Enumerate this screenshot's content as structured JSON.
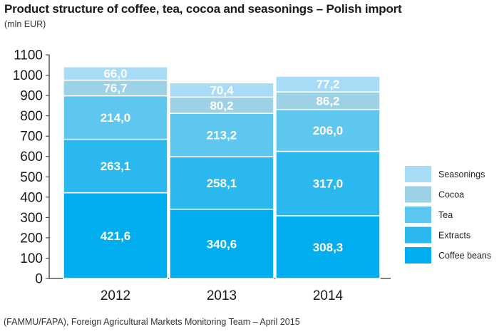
{
  "title": "Product structure of coffee, tea, cocoa and seasonings – Polish import",
  "subtitle": "(mln EUR)",
  "source": "(FAMMU/FAPA), Foreign Agricultural Markets Monitoring Team – April 2015",
  "chart_data": {
    "type": "bar",
    "stacked": true,
    "categories": [
      "2012",
      "2013",
      "2014"
    ],
    "series": [
      {
        "name": "Coffee beans",
        "values": [
          421.6,
          340.6,
          308.3
        ],
        "labels": [
          "421,6",
          "340,6",
          "308,3"
        ],
        "color": "#00aeef"
      },
      {
        "name": "Extracts",
        "values": [
          263.1,
          258.1,
          317.0
        ],
        "labels": [
          "263,1",
          "258,1",
          "317,0"
        ],
        "color": "#2bb8ee"
      },
      {
        "name": "Tea",
        "values": [
          214.0,
          213.2,
          206.0
        ],
        "labels": [
          "214,0",
          "213,2",
          "206,0"
        ],
        "color": "#5ec7f0"
      },
      {
        "name": "Cocoa",
        "values": [
          76.7,
          80.2,
          86.2
        ],
        "labels": [
          "76,7",
          "80,2",
          "86,2"
        ],
        "color": "#9dd1e6"
      },
      {
        "name": "Seasonings",
        "values": [
          66.0,
          70.4,
          77.2
        ],
        "labels": [
          "66,0",
          "70,4",
          "77,2"
        ],
        "color": "#a8dcf6"
      }
    ],
    "ylim": [
      0,
      1100
    ],
    "yticks": [
      0,
      100,
      200,
      300,
      400,
      500,
      600,
      700,
      800,
      900,
      1000,
      1100
    ],
    "grid": false,
    "legend_position": "right"
  }
}
